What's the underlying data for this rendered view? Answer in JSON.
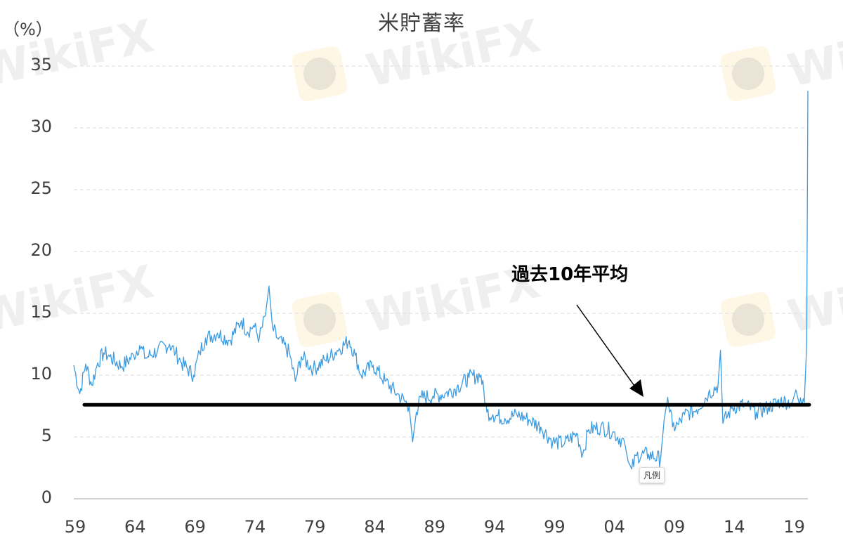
{
  "chart_data": {
    "type": "line",
    "title": "米貯蓄率",
    "ylabel": "（%）",
    "xlabel": "",
    "ylim": [
      0,
      35
    ],
    "yticks": [
      "0",
      "5",
      "10",
      "15",
      "20",
      "25",
      "30",
      "35"
    ],
    "xticks": [
      "59",
      "64",
      "69",
      "74",
      "79",
      "84",
      "89",
      "94",
      "99",
      "04",
      "09",
      "14",
      "19"
    ],
    "grid": "horizontal dashed",
    "series": [
      {
        "name": "米貯蓄率",
        "color": "#3d9be0",
        "x": [
          1959.0,
          1959.5,
          1960.0,
          1960.5,
          1961.0,
          1961.5,
          1962.0,
          1963.0,
          1964.0,
          1964.5,
          1965.0,
          1966.0,
          1967.0,
          1967.5,
          1968.0,
          1969.0,
          1969.5,
          1970.0,
          1971.0,
          1972.0,
          1973.0,
          1973.5,
          1974.0,
          1974.5,
          1975.0,
          1975.3,
          1975.6,
          1976.0,
          1977.0,
          1977.5,
          1978.0,
          1979.0,
          1980.0,
          1981.0,
          1982.0,
          1982.5,
          1983.0,
          1984.0,
          1985.0,
          1986.0,
          1987.0,
          1987.3,
          1987.6,
          1988.0,
          1989.0,
          1990.0,
          1991.0,
          1992.0,
          1993.0,
          1993.5,
          1994.0,
          1995.0,
          1996.0,
          1997.0,
          1998.0,
          1999.0,
          2000.0,
          2001.0,
          2001.5,
          2002.0,
          2003.0,
          2004.0,
          2005.0,
          2005.3,
          2005.6,
          2006.0,
          2007.0,
          2008.0,
          2008.3,
          2008.6,
          2009.0,
          2009.5,
          2010.0,
          2011.0,
          2012.0,
          2012.8,
          2013.0,
          2013.2,
          2014.0,
          2015.0,
          2016.0,
          2017.0,
          2018.0,
          2019.0,
          2019.3,
          2019.6,
          2020.0,
          2020.2,
          2020.3
        ],
        "values": [
          10.8,
          8.5,
          10.9,
          9.2,
          11.0,
          11.8,
          11.5,
          10.7,
          11.6,
          12.4,
          11.4,
          12.0,
          12.5,
          11.8,
          11.0,
          10.0,
          11.8,
          13.0,
          13.4,
          12.8,
          14.4,
          13.5,
          14.0,
          13.0,
          14.8,
          17.2,
          13.8,
          13.0,
          11.8,
          9.5,
          11.5,
          10.5,
          11.2,
          12.0,
          12.8,
          11.6,
          10.0,
          10.8,
          9.5,
          8.5,
          7.5,
          4.6,
          7.0,
          8.2,
          8.3,
          8.5,
          9.0,
          9.8,
          10.0,
          7.0,
          6.8,
          6.5,
          6.8,
          6.4,
          5.8,
          4.6,
          4.5,
          5.3,
          3.6,
          5.6,
          5.8,
          5.4,
          4.5,
          3.0,
          2.4,
          3.5,
          3.6,
          3.2,
          6.4,
          8.2,
          5.8,
          6.0,
          6.8,
          7.2,
          8.5,
          9.2,
          12.0,
          6.1,
          7.4,
          7.6,
          7.0,
          7.4,
          7.9,
          7.8,
          8.8,
          7.6,
          7.8,
          12.5,
          33.0
        ]
      },
      {
        "name": "過去10年平均",
        "color": "#000000",
        "x": [
          1959.8,
          2020.3
        ],
        "values": [
          7.6,
          7.6
        ]
      }
    ],
    "annotations": [
      {
        "text": "過去10年平均",
        "arrow_to": [
          2005.8,
          8.2
        ]
      }
    ],
    "legend": "凡例"
  },
  "watermark": "WikiFX"
}
